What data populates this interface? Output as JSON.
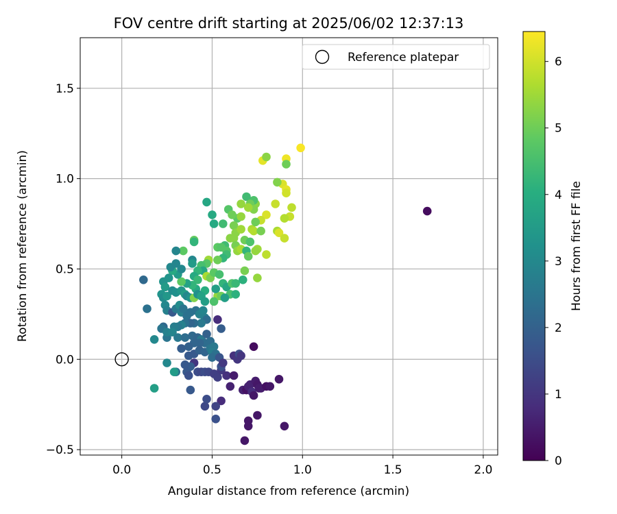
{
  "chart_data": {
    "type": "scatter",
    "title": "FOV centre drift starting at 2025/06/02 12:37:13",
    "xlabel": "Angular distance from reference (arcmin)",
    "ylabel": "Rotation from reference (arcmin)",
    "xlim": [
      -0.23,
      2.08
    ],
    "ylim": [
      -0.53,
      1.78
    ],
    "xticks": [
      0.0,
      0.5,
      1.0,
      1.5,
      2.0
    ],
    "xtick_labels": [
      "0.0",
      "0.5",
      "1.0",
      "1.5",
      "2.0"
    ],
    "yticks": [
      -0.5,
      0.0,
      0.5,
      1.0,
      1.5
    ],
    "ytick_labels": [
      "−0.5",
      "0.0",
      "0.5",
      "1.0",
      "1.5"
    ],
    "grid": true,
    "legend": {
      "placement": "top-right",
      "entries": [
        {
          "label": "Reference platepar",
          "marker": "open-circle",
          "x": 0.0,
          "y": 0.0
        }
      ]
    },
    "colorbar": {
      "label": "Hours from first FF file",
      "colormap": "viridis",
      "range": [
        0,
        6.45
      ],
      "ticks": [
        0,
        1,
        2,
        3,
        4,
        5,
        6
      ],
      "tick_labels": [
        "0",
        "1",
        "2",
        "3",
        "4",
        "5",
        "6"
      ]
    },
    "points": [
      [
        0.99,
        1.17,
        6.4
      ],
      [
        0.91,
        1.11,
        6.3
      ],
      [
        0.78,
        1.1,
        6.2
      ],
      [
        0.8,
        1.12,
        5.3
      ],
      [
        0.91,
        1.08,
        5.0
      ],
      [
        0.89,
        0.97,
        6.1
      ],
      [
        0.91,
        0.94,
        6.2
      ],
      [
        0.91,
        0.92,
        6.0
      ],
      [
        0.86,
        0.98,
        5.2
      ],
      [
        0.85,
        0.86,
        5.9
      ],
      [
        0.94,
        0.84,
        5.8
      ],
      [
        0.93,
        0.79,
        5.9
      ],
      [
        0.9,
        0.78,
        5.7
      ],
      [
        0.8,
        0.8,
        6.1
      ],
      [
        0.77,
        0.77,
        5.9
      ],
      [
        0.86,
        0.71,
        5.6
      ],
      [
        0.87,
        0.7,
        6.1
      ],
      [
        0.9,
        0.67,
        5.9
      ],
      [
        0.8,
        0.58,
        5.8
      ],
      [
        0.74,
        0.86,
        5.3
      ],
      [
        0.73,
        0.88,
        4.6
      ],
      [
        0.69,
        0.9,
        4.4
      ],
      [
        0.71,
        0.86,
        5.0
      ],
      [
        0.73,
        0.83,
        5.2
      ],
      [
        0.7,
        0.84,
        5.5
      ],
      [
        0.66,
        0.86,
        5.4
      ],
      [
        0.64,
        0.78,
        4.8
      ],
      [
        0.66,
        0.79,
        5.4
      ],
      [
        0.59,
        0.83,
        4.7
      ],
      [
        0.61,
        0.8,
        5.0
      ],
      [
        0.62,
        0.74,
        5.1
      ],
      [
        0.63,
        0.7,
        5.3
      ],
      [
        0.66,
        0.72,
        5.5
      ],
      [
        0.72,
        0.72,
        5.6
      ],
      [
        0.73,
        0.71,
        5.7
      ],
      [
        0.74,
        0.76,
        5.0
      ],
      [
        0.77,
        0.71,
        5.1
      ],
      [
        0.68,
        0.66,
        5.0
      ],
      [
        0.71,
        0.65,
        4.6
      ],
      [
        0.6,
        0.67,
        5.3
      ],
      [
        0.62,
        0.67,
        5.3
      ],
      [
        0.63,
        0.63,
        5.1
      ],
      [
        0.64,
        0.6,
        5.4
      ],
      [
        0.66,
        0.61,
        5.6
      ],
      [
        0.69,
        0.6,
        4.2
      ],
      [
        0.75,
        0.61,
        5.5
      ],
      [
        0.74,
        0.6,
        5.4
      ],
      [
        0.7,
        0.57,
        4.9
      ],
      [
        0.57,
        0.63,
        4.4
      ],
      [
        0.56,
        0.75,
        4.4
      ],
      [
        0.5,
        0.8,
        3.9
      ],
      [
        0.47,
        0.87,
        3.8
      ],
      [
        0.51,
        0.75,
        3.9
      ],
      [
        0.53,
        0.62,
        4.8
      ],
      [
        0.55,
        0.62,
        4.7
      ],
      [
        0.58,
        0.6,
        4.7
      ],
      [
        0.58,
        0.58,
        4.4
      ],
      [
        0.56,
        0.56,
        4.2
      ],
      [
        0.53,
        0.55,
        5.0
      ],
      [
        0.48,
        0.55,
        5.5
      ],
      [
        0.47,
        0.53,
        4.7
      ],
      [
        0.44,
        0.52,
        4.5
      ],
      [
        0.45,
        0.49,
        3.8
      ],
      [
        0.42,
        0.49,
        4.2
      ],
      [
        0.4,
        0.46,
        3.9
      ],
      [
        0.42,
        0.44,
        4.3
      ],
      [
        0.47,
        0.46,
        5.6
      ],
      [
        0.49,
        0.45,
        5.1
      ],
      [
        0.51,
        0.48,
        4.8
      ],
      [
        0.54,
        0.47,
        4.5
      ],
      [
        0.56,
        0.42,
        4.2
      ],
      [
        0.58,
        0.4,
        3.8
      ],
      [
        0.61,
        0.42,
        4.6
      ],
      [
        0.63,
        0.42,
        4.3
      ],
      [
        0.67,
        0.44,
        4.1
      ],
      [
        0.68,
        0.49,
        5.1
      ],
      [
        0.75,
        0.45,
        5.4
      ],
      [
        0.6,
        0.36,
        4.5
      ],
      [
        0.63,
        0.36,
        4.1
      ],
      [
        0.53,
        0.35,
        5.4
      ],
      [
        0.55,
        0.35,
        5.0
      ],
      [
        0.51,
        0.32,
        4.6
      ],
      [
        0.57,
        0.34,
        3.6
      ],
      [
        0.52,
        0.39,
        3.6
      ],
      [
        0.46,
        0.38,
        4.0
      ],
      [
        0.41,
        0.39,
        3.9
      ],
      [
        0.39,
        0.41,
        4.2
      ],
      [
        0.36,
        0.42,
        3.7
      ],
      [
        0.33,
        0.43,
        4.8
      ],
      [
        0.31,
        0.47,
        3.5
      ],
      [
        0.28,
        0.49,
        3.9
      ],
      [
        0.27,
        0.51,
        3.0
      ],
      [
        0.3,
        0.53,
        2.9
      ],
      [
        0.33,
        0.5,
        3.0
      ],
      [
        0.34,
        0.6,
        4.8
      ],
      [
        0.3,
        0.6,
        2.9
      ],
      [
        0.39,
        0.55,
        3.0
      ],
      [
        0.4,
        0.66,
        4.9
      ],
      [
        0.4,
        0.65,
        4.2
      ],
      [
        0.39,
        0.53,
        3.5
      ],
      [
        0.26,
        0.45,
        3.3
      ],
      [
        0.23,
        0.43,
        3.3
      ],
      [
        0.24,
        0.4,
        3.5
      ],
      [
        0.22,
        0.36,
        3.3
      ],
      [
        0.23,
        0.34,
        3.1
      ],
      [
        0.25,
        0.35,
        3.4
      ],
      [
        0.28,
        0.38,
        3.1
      ],
      [
        0.3,
        0.37,
        3.2
      ],
      [
        0.33,
        0.38,
        3.4
      ],
      [
        0.35,
        0.36,
        3.6
      ],
      [
        0.36,
        0.35,
        3.0
      ],
      [
        0.38,
        0.34,
        3.3
      ],
      [
        0.4,
        0.34,
        5.2
      ],
      [
        0.42,
        0.36,
        3.2
      ],
      [
        0.44,
        0.35,
        3.7
      ],
      [
        0.46,
        0.32,
        3.6
      ],
      [
        0.24,
        0.3,
        3.0
      ],
      [
        0.25,
        0.27,
        2.8
      ],
      [
        0.28,
        0.26,
        1.8
      ],
      [
        0.3,
        0.28,
        2.6
      ],
      [
        0.32,
        0.3,
        3.1
      ],
      [
        0.33,
        0.26,
        2.8
      ],
      [
        0.34,
        0.28,
        2.5
      ],
      [
        0.36,
        0.24,
        2.4
      ],
      [
        0.38,
        0.26,
        2.4
      ],
      [
        0.41,
        0.27,
        2.4
      ],
      [
        0.43,
        0.25,
        2.8
      ],
      [
        0.45,
        0.27,
        2.9
      ],
      [
        0.46,
        0.23,
        2.8
      ],
      [
        0.47,
        0.22,
        2.3
      ],
      [
        0.44,
        0.2,
        2.6
      ],
      [
        0.4,
        0.2,
        2.3
      ],
      [
        0.38,
        0.2,
        2.1
      ],
      [
        0.35,
        0.2,
        2.4
      ],
      [
        0.33,
        0.19,
        2.8
      ],
      [
        0.31,
        0.18,
        2.6
      ],
      [
        0.29,
        0.18,
        2.7
      ],
      [
        0.23,
        0.18,
        2.2
      ],
      [
        0.22,
        0.17,
        2.5
      ],
      [
        0.18,
        0.11,
        3.0
      ],
      [
        0.14,
        0.28,
        2.4
      ],
      [
        0.12,
        0.44,
        2.2
      ],
      [
        0.25,
        0.12,
        2.5
      ],
      [
        0.25,
        0.15,
        2.8
      ],
      [
        0.28,
        0.15,
        2.9
      ],
      [
        0.31,
        0.12,
        2.6
      ],
      [
        0.35,
        0.12,
        2.3
      ],
      [
        0.39,
        0.13,
        2.2
      ],
      [
        0.42,
        0.12,
        2.1
      ],
      [
        0.44,
        0.11,
        2.6
      ],
      [
        0.47,
        0.14,
        2.0
      ],
      [
        0.49,
        0.1,
        2.3
      ],
      [
        0.46,
        0.09,
        2.3
      ],
      [
        0.43,
        0.09,
        2.1
      ],
      [
        0.4,
        0.09,
        2.1
      ],
      [
        0.37,
        0.07,
        2.0
      ],
      [
        0.33,
        0.06,
        1.9
      ],
      [
        0.37,
        0.02,
        1.8
      ],
      [
        0.4,
        0.03,
        1.8
      ],
      [
        0.43,
        0.05,
        2.0
      ],
      [
        0.46,
        0.04,
        2.1
      ],
      [
        0.49,
        0.06,
        2.5
      ],
      [
        0.51,
        0.07,
        2.6
      ],
      [
        0.5,
        0.04,
        2.7
      ],
      [
        0.52,
        0.03,
        2.4
      ],
      [
        0.5,
        0.01,
        2.3
      ],
      [
        0.54,
        0.01,
        1.7
      ],
      [
        0.55,
        0.17,
        1.9
      ],
      [
        0.53,
        0.22,
        0.8
      ],
      [
        0.4,
        -0.02,
        1.0
      ],
      [
        0.38,
        -0.04,
        1.9
      ],
      [
        0.35,
        -0.03,
        1.8
      ],
      [
        0.36,
        -0.07,
        1.8
      ],
      [
        0.37,
        -0.09,
        1.6
      ],
      [
        0.42,
        -0.07,
        1.5
      ],
      [
        0.44,
        -0.07,
        1.4
      ],
      [
        0.46,
        -0.07,
        1.5
      ],
      [
        0.48,
        -0.07,
        1.4
      ],
      [
        0.51,
        -0.08,
        1.2
      ],
      [
        0.53,
        -0.1,
        1.2
      ],
      [
        0.55,
        -0.06,
        1.1
      ],
      [
        0.55,
        -0.04,
        1.6
      ],
      [
        0.56,
        -0.02,
        1.1
      ],
      [
        0.58,
        -0.09,
        0.9
      ],
      [
        0.6,
        -0.15,
        0.6
      ],
      [
        0.62,
        0.02,
        0.9
      ],
      [
        0.64,
        0.0,
        1.0
      ],
      [
        0.65,
        0.03,
        1.5
      ],
      [
        0.66,
        0.02,
        1.0
      ],
      [
        0.62,
        -0.09,
        0.5
      ],
      [
        0.67,
        -0.17,
        0.6
      ],
      [
        0.69,
        -0.17,
        0.3
      ],
      [
        0.7,
        -0.15,
        0.6
      ],
      [
        0.71,
        -0.14,
        0.6
      ],
      [
        0.72,
        -0.18,
        0.8
      ],
      [
        0.73,
        -0.2,
        0.4
      ],
      [
        0.74,
        -0.12,
        0.5
      ],
      [
        0.75,
        -0.14,
        0.4
      ],
      [
        0.76,
        -0.16,
        0.5
      ],
      [
        0.77,
        -0.16,
        0.5
      ],
      [
        0.8,
        -0.15,
        0.3
      ],
      [
        0.82,
        -0.15,
        0.4
      ],
      [
        0.87,
        -0.11,
        0.4
      ],
      [
        0.7,
        -0.34,
        0.4
      ],
      [
        0.7,
        -0.37,
        0.4
      ],
      [
        0.75,
        -0.31,
        0.4
      ],
      [
        0.68,
        -0.45,
        0.4
      ],
      [
        0.9,
        -0.37,
        0.4
      ],
      [
        0.55,
        -0.23,
        0.8
      ],
      [
        0.52,
        -0.26,
        1.3
      ],
      [
        0.46,
        -0.26,
        1.4
      ],
      [
        0.47,
        -0.22,
        1.5
      ],
      [
        0.52,
        -0.33,
        1.6
      ],
      [
        0.38,
        -0.17,
        1.8
      ],
      [
        0.3,
        -0.07,
        2.4
      ],
      [
        0.29,
        -0.07,
        3.5
      ],
      [
        0.25,
        -0.02,
        3.0
      ],
      [
        0.18,
        -0.16,
        3.6
      ],
      [
        0.73,
        0.07,
        0.2
      ],
      [
        1.69,
        0.82,
        0.2
      ]
    ]
  }
}
